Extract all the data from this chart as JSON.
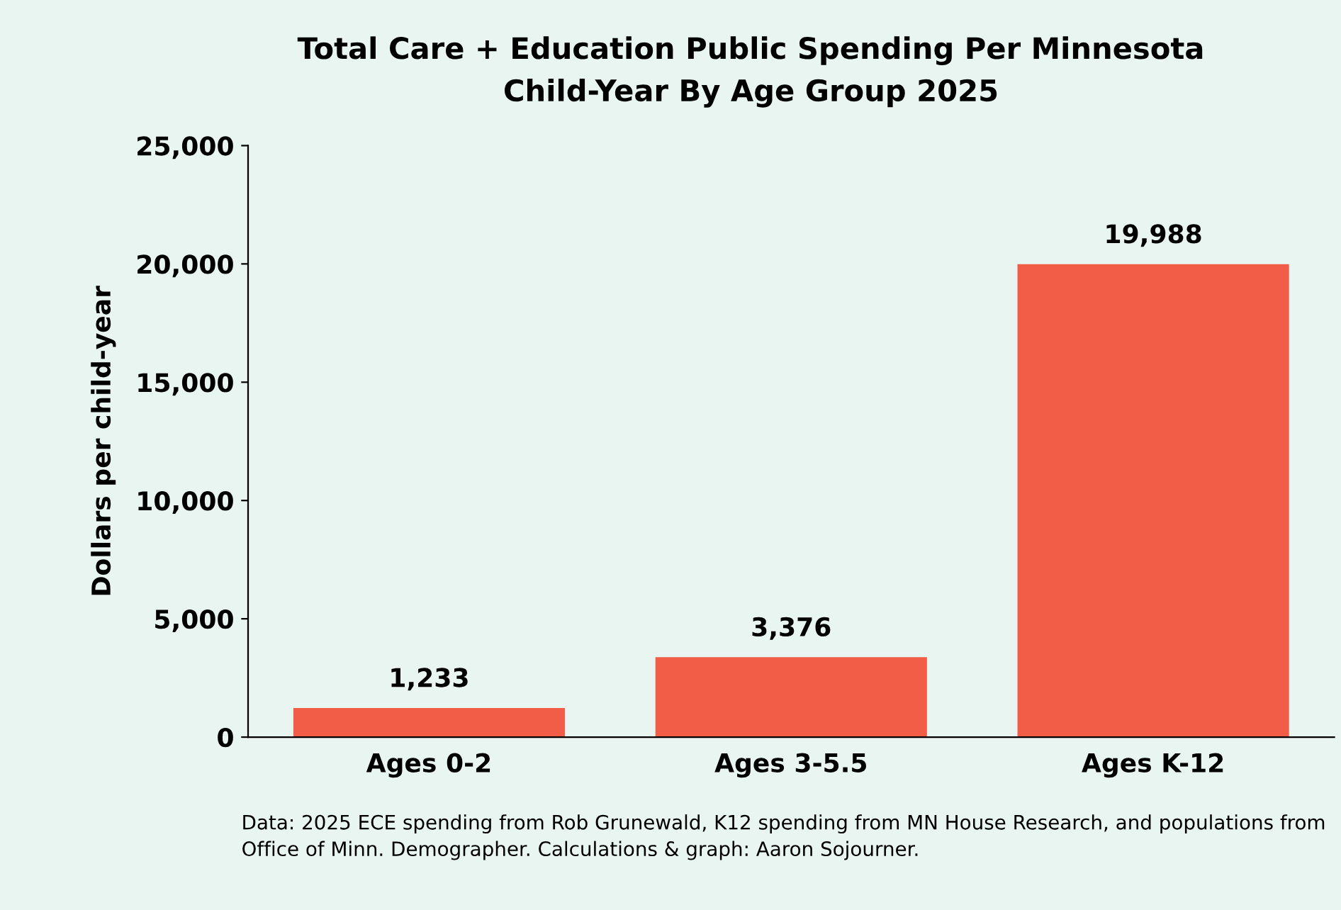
{
  "chart_data": {
    "type": "bar",
    "title": "Total Care + Education Public Spending Per Minnesota\nChild-Year By Age Group 2025",
    "ylabel": "Dollars per child-year",
    "categories": [
      "Ages 0-2",
      "Ages 3-5.5",
      "Ages K-12"
    ],
    "values": [
      1233,
      3376,
      19988
    ],
    "value_labels": [
      "1,233",
      "3,376",
      "19,988"
    ],
    "color": "#f25d48",
    "ylim": [
      0,
      25000
    ],
    "yticks": [
      {
        "value": 0,
        "label": "0"
      },
      {
        "value": 5000,
        "label": "5,000"
      },
      {
        "value": 10000,
        "label": "10,000"
      },
      {
        "value": 15000,
        "label": "15,000"
      },
      {
        "value": 20000,
        "label": "20,000"
      },
      {
        "value": 25000,
        "label": "25,000"
      }
    ],
    "grid": false,
    "annotations": [
      "Data: 2025 ECE spending from Rob Grunewald, K12 spending from MN House Research, and populations from Office of Minn. Demographer. Calculations & graph: Aaron Sojourner."
    ]
  }
}
